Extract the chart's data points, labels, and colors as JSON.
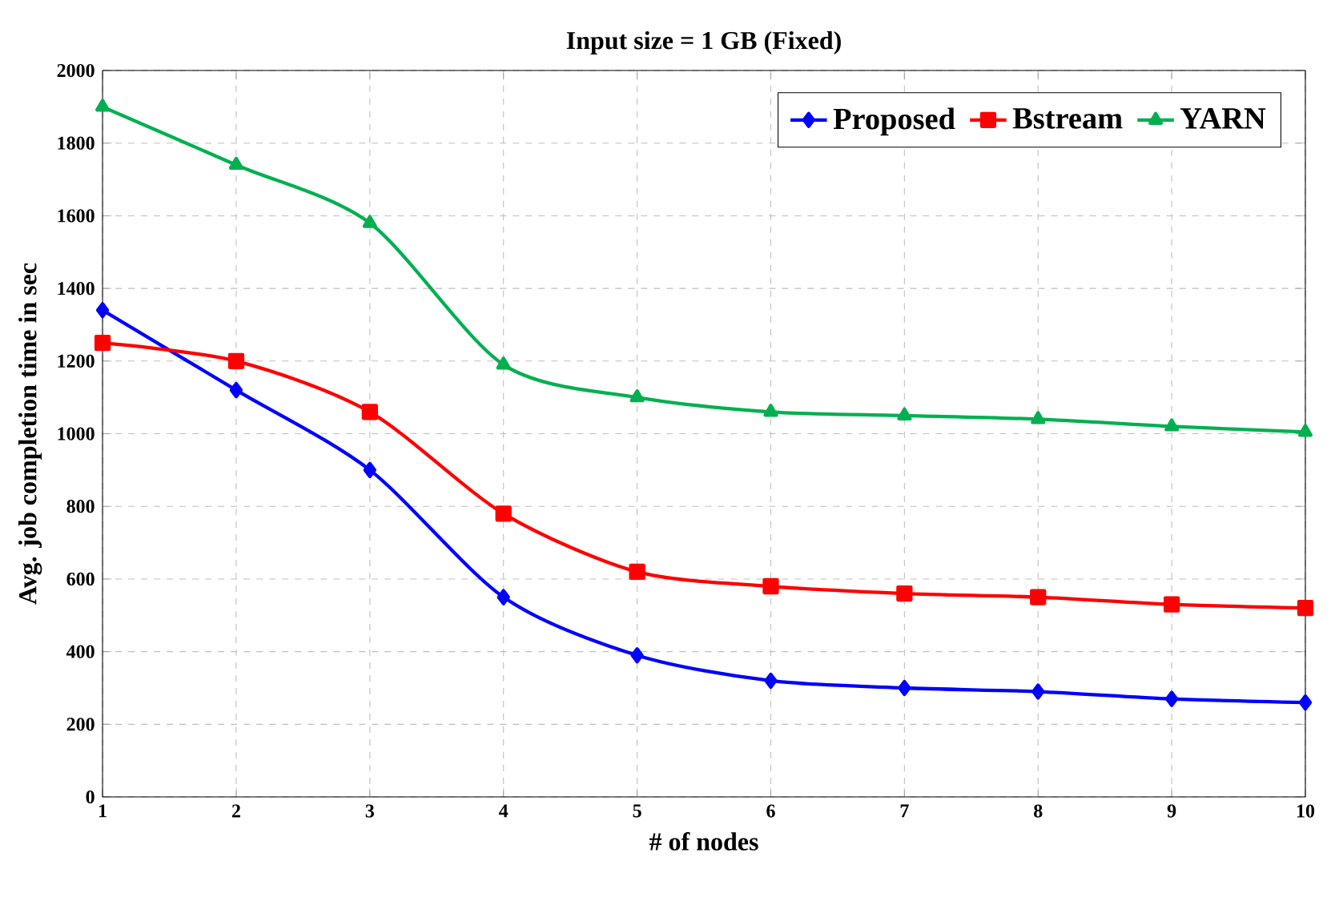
{
  "chart_data": {
    "type": "line",
    "title": "Input size = 1 GB (Fixed)",
    "xlabel": "# of nodes",
    "ylabel": "Avg. job completion time in sec",
    "x": [
      1,
      2,
      3,
      4,
      5,
      6,
      7,
      8,
      9,
      10
    ],
    "series": [
      {
        "name": "Proposed",
        "color": "#0000ff",
        "marker": "diamond",
        "values": [
          1340,
          1120,
          900,
          550,
          390,
          320,
          300,
          290,
          270,
          260
        ]
      },
      {
        "name": "Bstream",
        "color": "#ff0000",
        "marker": "square",
        "values": [
          1250,
          1200,
          1060,
          780,
          620,
          580,
          560,
          550,
          530,
          520
        ]
      },
      {
        "name": "YARN",
        "color": "#00b050",
        "marker": "triangle",
        "values": [
          1900,
          1740,
          1580,
          1190,
          1100,
          1060,
          1050,
          1040,
          1020,
          1005
        ]
      }
    ],
    "xlim": [
      1,
      10
    ],
    "xticks": [
      1,
      2,
      3,
      4,
      5,
      6,
      7,
      8,
      9,
      10
    ],
    "ylim": [
      0,
      2000
    ],
    "yticks": [
      0,
      200,
      400,
      600,
      800,
      1000,
      1200,
      1400,
      1600,
      1800,
      2000
    ],
    "grid": true,
    "legend": "top right",
    "line_style": "solid"
  }
}
